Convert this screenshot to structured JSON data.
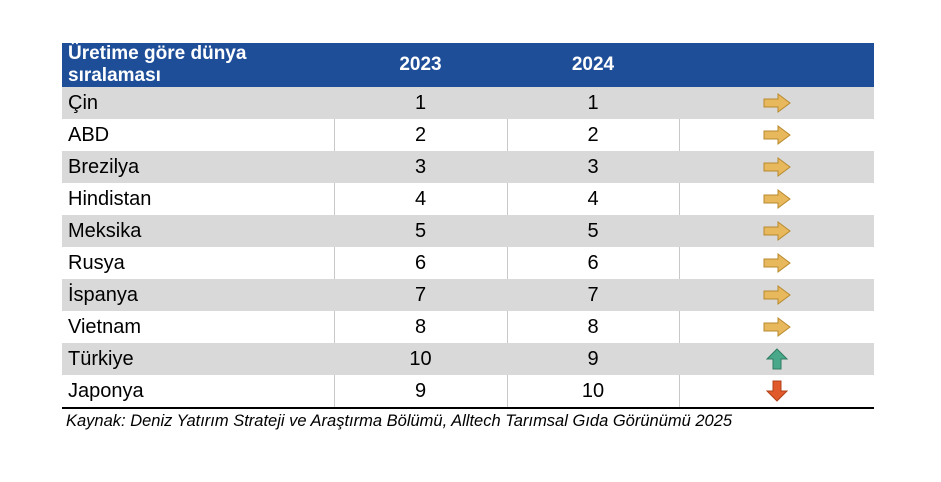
{
  "table": {
    "headers": {
      "label": "Üretime göre dünya sıralaması",
      "col2023": "2023",
      "col2024": "2024",
      "trend": ""
    },
    "rows": [
      {
        "country": "Çin",
        "y2023": "1",
        "y2024": "1",
        "trend": "right-arrow-icon"
      },
      {
        "country": "ABD",
        "y2023": "2",
        "y2024": "2",
        "trend": "right-arrow-icon"
      },
      {
        "country": "Brezilya",
        "y2023": "3",
        "y2024": "3",
        "trend": "right-arrow-icon"
      },
      {
        "country": "Hindistan",
        "y2023": "4",
        "y2024": "4",
        "trend": "right-arrow-icon"
      },
      {
        "country": "Meksika",
        "y2023": "5",
        "y2024": "5",
        "trend": "right-arrow-icon"
      },
      {
        "country": "Rusya",
        "y2023": "6",
        "y2024": "6",
        "trend": "right-arrow-icon"
      },
      {
        "country": "İspanya",
        "y2023": "7",
        "y2024": "7",
        "trend": "right-arrow-icon"
      },
      {
        "country": "Vietnam",
        "y2023": "8",
        "y2024": "8",
        "trend": "right-arrow-icon"
      },
      {
        "country": "Türkiye",
        "y2023": "10",
        "y2024": "9",
        "trend": "up-arrow-icon"
      },
      {
        "country": "Japonya",
        "y2023": "9",
        "y2024": "10",
        "trend": "down-arrow-icon"
      }
    ]
  },
  "source": "Kaynak: Deniz Yatırım Strateji ve Araştırma Bölümü, Alltech Tarımsal Gıda Görünümü 2025",
  "colors": {
    "header_bg": "#1f4e99",
    "stripe": "#d9d9d9",
    "arrow_right": "#e8b85c",
    "arrow_up": "#4aa88a",
    "arrow_down": "#e05a2b"
  }
}
